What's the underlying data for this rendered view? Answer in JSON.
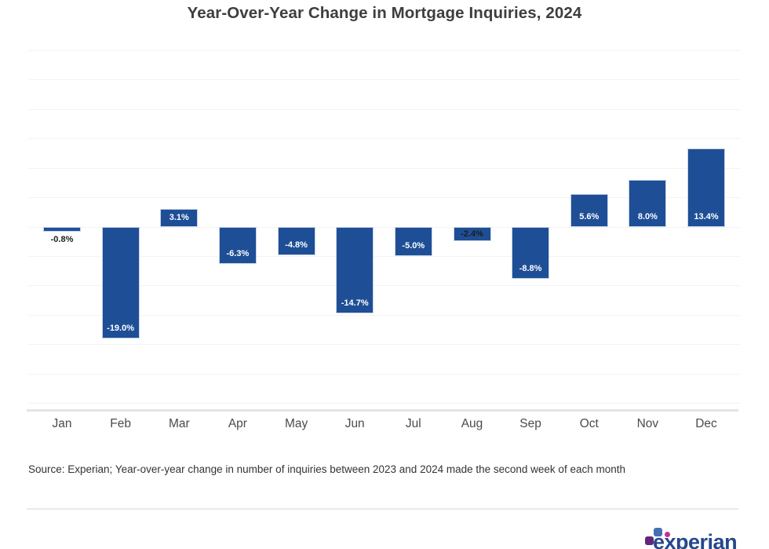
{
  "header": {
    "title": "Year-Over-Year Change in Mortgage Inquiries, 2024"
  },
  "chart_data": {
    "type": "bar",
    "title": "Year-Over-Year Change in Mortgage Inquiries, 2024",
    "categories": [
      "Jan",
      "Feb",
      "Mar",
      "Apr",
      "May",
      "Jun",
      "Jul",
      "Aug",
      "Sep",
      "Oct",
      "Nov",
      "Dec"
    ],
    "values": [
      -0.8,
      -19.0,
      3.1,
      -6.3,
      -4.8,
      -14.7,
      -5.0,
      -2.4,
      -8.8,
      5.6,
      8.0,
      13.4
    ],
    "data_labels": [
      {
        "text": "-0.8%",
        "placement": "below",
        "tone": "dark"
      },
      {
        "text": "-19.0%",
        "placement": "inside-bottom",
        "tone": "light"
      },
      {
        "text": "3.1%",
        "placement": "inside-center",
        "tone": "light"
      },
      {
        "text": "-6.3%",
        "placement": "inside-bottom",
        "tone": "light"
      },
      {
        "text": "-4.8%",
        "placement": "inside-bottom",
        "tone": "light"
      },
      {
        "text": "-14.7%",
        "placement": "inside-bottom",
        "tone": "light"
      },
      {
        "text": "-5.0%",
        "placement": "inside-bottom",
        "tone": "light"
      },
      {
        "text": "-2.4%",
        "placement": "inside-center",
        "tone": "dark"
      },
      {
        "text": "-8.8%",
        "placement": "inside-bottom",
        "tone": "light"
      },
      {
        "text": "5.6%",
        "placement": "inside-bottom",
        "tone": "light"
      },
      {
        "text": "8.0%",
        "placement": "inside-bottom",
        "tone": "light"
      },
      {
        "text": "13.4%",
        "placement": "inside-bottom",
        "tone": "light"
      }
    ],
    "xlabel": "",
    "ylabel": "",
    "ylim": [
      -30,
      30
    ],
    "grid_step_pct": 5,
    "grid": true,
    "legend": "none",
    "bar_color": "#1e4f96",
    "label_color_light": "#ffffff",
    "label_color_dark": "#1c1c1c"
  },
  "footer": {
    "source": "Source: Experian; Year-over-year change in number of inquiries between 2023 and 2024 made the second week of each month",
    "logo_text": "experian"
  }
}
